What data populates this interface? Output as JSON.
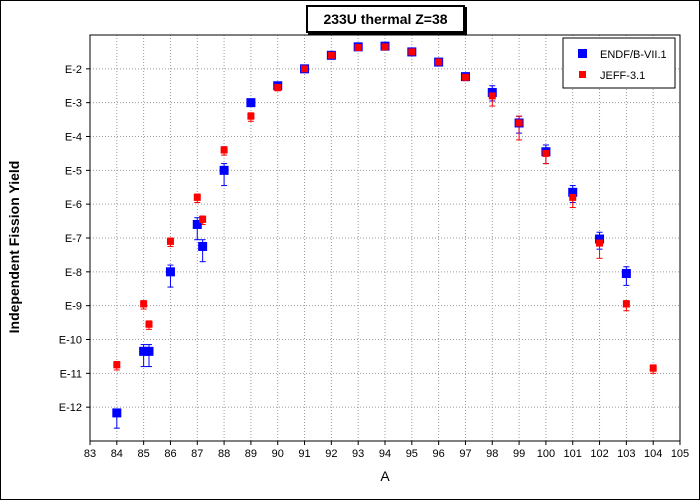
{
  "chart_data": {
    "type": "scatter",
    "title": "233U thermal Z=38",
    "xlabel": "A",
    "ylabel": "Independent Fission Yield",
    "xlim": [
      83,
      105
    ],
    "ylim_exponent": [
      -13,
      -1
    ],
    "y_scale": "log",
    "x_ticks": [
      "83",
      "84",
      "85",
      "86",
      "87",
      "88",
      "89",
      "90",
      "91",
      "92",
      "93",
      "94",
      "95",
      "96",
      "97",
      "98",
      "99",
      "100",
      "101",
      "102",
      "103",
      "104",
      "105"
    ],
    "y_ticks": [
      {
        "label": "E-2",
        "exp": -2
      },
      {
        "label": "E-3",
        "exp": -3
      },
      {
        "label": "E-4",
        "exp": -4
      },
      {
        "label": "E-5",
        "exp": -5
      },
      {
        "label": "E-6",
        "exp": -6
      },
      {
        "label": "E-7",
        "exp": -7
      },
      {
        "label": "E-8",
        "exp": -8
      },
      {
        "label": "E-9",
        "exp": -9
      },
      {
        "label": "E-10",
        "exp": -10
      },
      {
        "label": "E-11",
        "exp": -11
      },
      {
        "label": "E-12",
        "exp": -12
      }
    ],
    "grid": true,
    "legend_position": "top-right",
    "series": [
      {
        "name": "ENDF/B-VII.1",
        "color": "#0000ff",
        "marker": "square-large",
        "points": [
          {
            "x": 84.0,
            "exp": -12.17,
            "err_lo": 0.45,
            "err_hi": 0.1
          },
          {
            "x": 85.0,
            "exp": -10.35,
            "err_lo": 0.45,
            "err_hi": 0.2
          },
          {
            "x": 85.2,
            "exp": -10.35,
            "err_lo": 0.45,
            "err_hi": 0.2
          },
          {
            "x": 86.0,
            "exp": -8.0,
            "err_lo": 0.45,
            "err_hi": 0.2
          },
          {
            "x": 87.0,
            "exp": -6.6,
            "err_lo": 0.45,
            "err_hi": 0.2
          },
          {
            "x": 87.2,
            "exp": -7.25,
            "err_lo": 0.45,
            "err_hi": 0.2
          },
          {
            "x": 88.0,
            "exp": -5.0,
            "err_lo": 0.45,
            "err_hi": 0.2
          },
          {
            "x": 89.0,
            "exp": -3.0,
            "err_lo": 0.05,
            "err_hi": 0.05
          },
          {
            "x": 90.0,
            "exp": -2.5,
            "err_lo": 0.08,
            "err_hi": 0.08
          },
          {
            "x": 91.0,
            "exp": -2.0,
            "err_lo": 0.08,
            "err_hi": 0.08
          },
          {
            "x": 92.0,
            "exp": -1.6,
            "err_lo": 0.08,
            "err_hi": 0.08
          },
          {
            "x": 93.0,
            "exp": -1.35,
            "err_lo": 0.08,
            "err_hi": 0.08
          },
          {
            "x": 94.0,
            "exp": -1.33,
            "err_lo": 0.08,
            "err_hi": 0.08
          },
          {
            "x": 95.0,
            "exp": -1.5,
            "err_lo": 0.08,
            "err_hi": 0.08
          },
          {
            "x": 96.0,
            "exp": -1.8,
            "err_lo": 0.08,
            "err_hi": 0.08
          },
          {
            "x": 97.0,
            "exp": -2.23,
            "err_lo": 0.1,
            "err_hi": 0.1
          },
          {
            "x": 98.0,
            "exp": -2.7,
            "err_lo": 0.25,
            "err_hi": 0.2
          },
          {
            "x": 99.0,
            "exp": -3.6,
            "err_lo": 0.3,
            "err_hi": 0.2
          },
          {
            "x": 100.0,
            "exp": -4.45,
            "err_lo": 0.35,
            "err_hi": 0.2
          },
          {
            "x": 101.0,
            "exp": -5.65,
            "err_lo": 0.3,
            "err_hi": 0.2
          },
          {
            "x": 102.0,
            "exp": -7.03,
            "err_lo": 0.3,
            "err_hi": 0.2
          },
          {
            "x": 103.0,
            "exp": -8.05,
            "err_lo": 0.35,
            "err_hi": 0.2
          }
        ]
      },
      {
        "name": "JEFF-3.1",
        "color": "#ff0000",
        "marker": "square-small",
        "points": [
          {
            "x": 84.0,
            "exp": -10.75,
            "err_lo": 0.15,
            "err_hi": 0.1
          },
          {
            "x": 85.0,
            "exp": -8.95,
            "err_lo": 0.15,
            "err_hi": 0.1
          },
          {
            "x": 85.2,
            "exp": -9.55,
            "err_lo": 0.15,
            "err_hi": 0.1
          },
          {
            "x": 86.0,
            "exp": -7.1,
            "err_lo": 0.15,
            "err_hi": 0.1
          },
          {
            "x": 87.0,
            "exp": -5.8,
            "err_lo": 0.15,
            "err_hi": 0.1
          },
          {
            "x": 87.2,
            "exp": -6.45,
            "err_lo": 0.15,
            "err_hi": 0.1
          },
          {
            "x": 88.0,
            "exp": -4.4,
            "err_lo": 0.15,
            "err_hi": 0.1
          },
          {
            "x": 89.0,
            "exp": -3.4,
            "err_lo": 0.15,
            "err_hi": 0.1
          },
          {
            "x": 90.0,
            "exp": -2.55,
            "err_lo": 0.1,
            "err_hi": 0.1
          },
          {
            "x": 91.0,
            "exp": -2.0,
            "err_lo": 0.08,
            "err_hi": 0.08
          },
          {
            "x": 92.0,
            "exp": -1.6,
            "err_lo": 0.08,
            "err_hi": 0.08
          },
          {
            "x": 93.0,
            "exp": -1.37,
            "err_lo": 0.08,
            "err_hi": 0.08
          },
          {
            "x": 94.0,
            "exp": -1.35,
            "err_lo": 0.08,
            "err_hi": 0.08
          },
          {
            "x": 95.0,
            "exp": -1.5,
            "err_lo": 0.08,
            "err_hi": 0.08
          },
          {
            "x": 96.0,
            "exp": -1.8,
            "err_lo": 0.08,
            "err_hi": 0.08
          },
          {
            "x": 97.0,
            "exp": -2.25,
            "err_lo": 0.1,
            "err_hi": 0.1
          },
          {
            "x": 98.0,
            "exp": -2.8,
            "err_lo": 0.3,
            "err_hi": 0.15
          },
          {
            "x": 99.0,
            "exp": -3.6,
            "err_lo": 0.5,
            "err_hi": 0.2
          },
          {
            "x": 100.0,
            "exp": -4.5,
            "err_lo": 0.3,
            "err_hi": 0.15
          },
          {
            "x": 101.0,
            "exp": -5.8,
            "err_lo": 0.3,
            "err_hi": 0.15
          },
          {
            "x": 102.0,
            "exp": -7.15,
            "err_lo": 0.45,
            "err_hi": 0.15
          },
          {
            "x": 103.0,
            "exp": -8.95,
            "err_lo": 0.2,
            "err_hi": 0.1
          },
          {
            "x": 104.0,
            "exp": -10.85,
            "err_lo": 0.15,
            "err_hi": 0.1
          }
        ]
      }
    ]
  }
}
